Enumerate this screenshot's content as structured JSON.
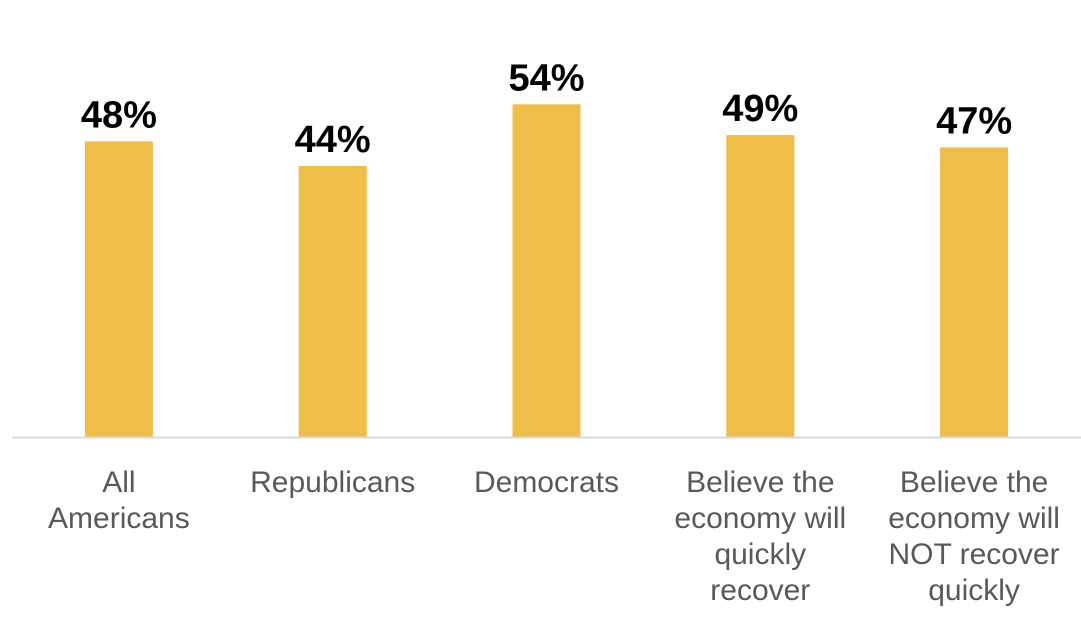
{
  "chart_data": {
    "type": "bar",
    "categories": [
      [
        "All",
        "Americans"
      ],
      [
        "Republicans"
      ],
      [
        "Democrats"
      ],
      [
        "Believe the",
        "economy will",
        "quickly",
        "recover"
      ],
      [
        "Believe the",
        "economy will",
        "NOT recover",
        "quickly"
      ]
    ],
    "values": [
      48,
      44,
      54,
      49,
      47
    ],
    "data_labels": [
      "48%",
      "44%",
      "54%",
      "49%",
      "47%"
    ],
    "unit": "%",
    "ylim": [
      0,
      62
    ],
    "grid": false,
    "legend": "none",
    "title": "",
    "xlabel": "",
    "ylabel": ""
  },
  "colors": {
    "bar": "#EFBE49",
    "axis": "#D9D9D9",
    "category_text": "#595959",
    "value_text": "#000000"
  }
}
